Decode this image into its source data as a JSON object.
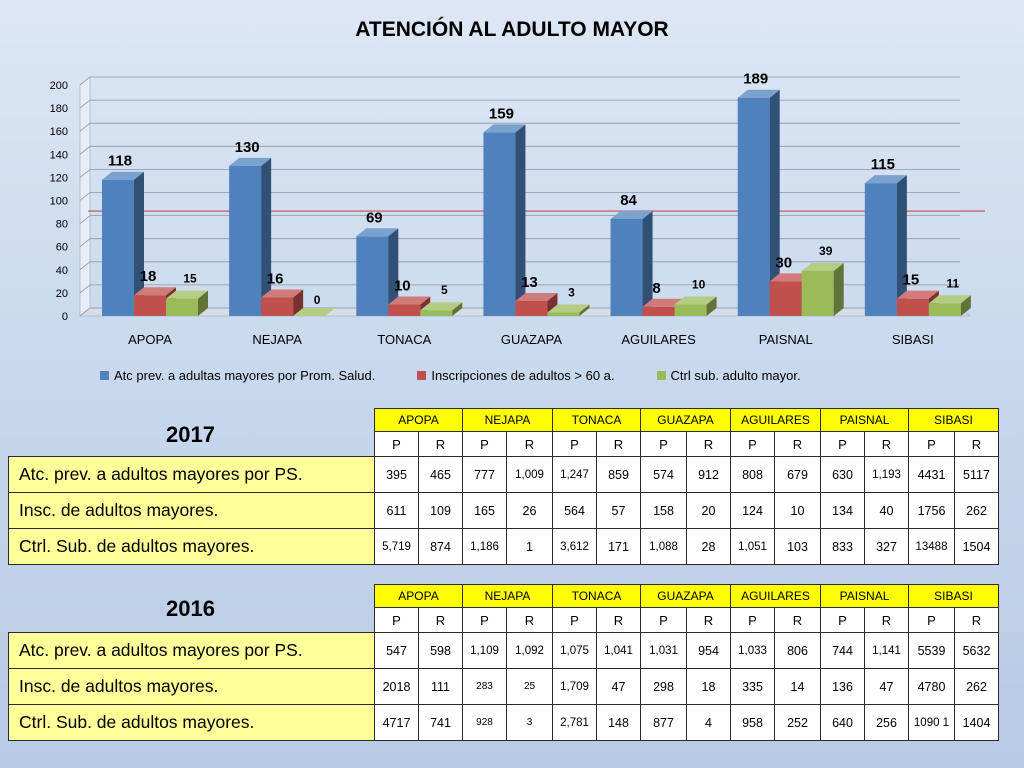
{
  "chart_data": {
    "type": "bar",
    "title": "ATENCIÓN AL ADULTO MAYOR",
    "categories": [
      "APOPA",
      "NEJAPA",
      "TONACA",
      "GUAZAPA",
      "AGUILARES",
      "PAISNAL",
      "SIBASI"
    ],
    "series": [
      {
        "name": "Atc prev. a adultas mayores por Prom. Salud.",
        "values": [
          118,
          130,
          69,
          159,
          84,
          189,
          115
        ],
        "color": "#4f81bd"
      },
      {
        "name": "Inscripciones de adultos > 60 a.",
        "values": [
          18,
          16,
          10,
          13,
          8,
          30,
          15
        ],
        "color": "#c0504d"
      },
      {
        "name": "Ctrl sub. adulto mayor.",
        "values": [
          15,
          0,
          5,
          3,
          10,
          39,
          11
        ],
        "color": "#9bbb59"
      }
    ],
    "y_ticks": [
      "0",
      "20",
      "40",
      "60",
      "80",
      "100",
      "120",
      "140",
      "160",
      "180",
      "200"
    ],
    "ylim": [
      0,
      200
    ],
    "reference_line": 90,
    "reference_line_color": "#c0504d",
    "grid": true,
    "legend": "bottom"
  },
  "tables": [
    {
      "year": "2017",
      "headers": [
        "APOPA",
        "NEJAPA",
        "TONACA",
        "GUAZAPA",
        "AGUILARES",
        "PAISNAL",
        "SIBASI"
      ],
      "subheaders": [
        "P",
        "R",
        "P",
        "R",
        "P",
        "R",
        "P",
        "R",
        "P",
        "R",
        "P",
        "R",
        "P",
        "R"
      ],
      "rows": [
        {
          "label": "Atc. prev. a  adultos mayores por PS.",
          "values": [
            "395",
            "465",
            "777",
            "1,009",
            "1,247",
            "859",
            "574",
            "912",
            "808",
            "679",
            "630",
            "1,193",
            "4431",
            "5117"
          ]
        },
        {
          "label": "Insc. de adultos mayores.",
          "values": [
            "611",
            "109",
            "165",
            "26",
            "564",
            "57",
            "158",
            "20",
            "124",
            "10",
            "134",
            "40",
            "1756",
            "262"
          ]
        },
        {
          "label": "Ctrl.  Sub. de adultos mayores.",
          "values": [
            "5,719",
            "874",
            "1,186",
            "1",
            "3,612",
            "171",
            "1,088",
            "28",
            "1,051",
            "103",
            "833",
            "327",
            "13488",
            "1504"
          ]
        }
      ]
    },
    {
      "year": "2016",
      "headers": [
        "APOPA",
        "NEJAPA",
        "TONACA",
        "GUAZAPA",
        "AGUILARES",
        "PAISNAL",
        "SIBASI"
      ],
      "subheaders": [
        "P",
        "R",
        "P",
        "R",
        "P",
        "R",
        "P",
        "R",
        "P",
        "R",
        "P",
        "R",
        "P",
        "R"
      ],
      "rows": [
        {
          "label": "Atc. prev. a  adultos mayores por PS.",
          "values": [
            "547",
            "598",
            "1,109",
            "1,092",
            "1,075",
            "1,041",
            "1,031",
            "954",
            "1,033",
            "806",
            "744",
            "1,141",
            "5539",
            "5632"
          ]
        },
        {
          "label": "Insc. de adultos mayores.",
          "values": [
            "2018",
            "111",
            "283",
            "25",
            "1,709",
            "47",
            "298",
            "18",
            "335",
            "14",
            "136",
            "47",
            "4780",
            "262"
          ]
        },
        {
          "label": "Ctrl.  Sub. de adultos mayores.",
          "values": [
            "4717",
            "741",
            "928",
            "3",
            "2,781",
            "148",
            "877",
            "4",
            "958",
            "252",
            "640",
            "256",
            "1090 1",
            "1404"
          ]
        }
      ]
    }
  ]
}
